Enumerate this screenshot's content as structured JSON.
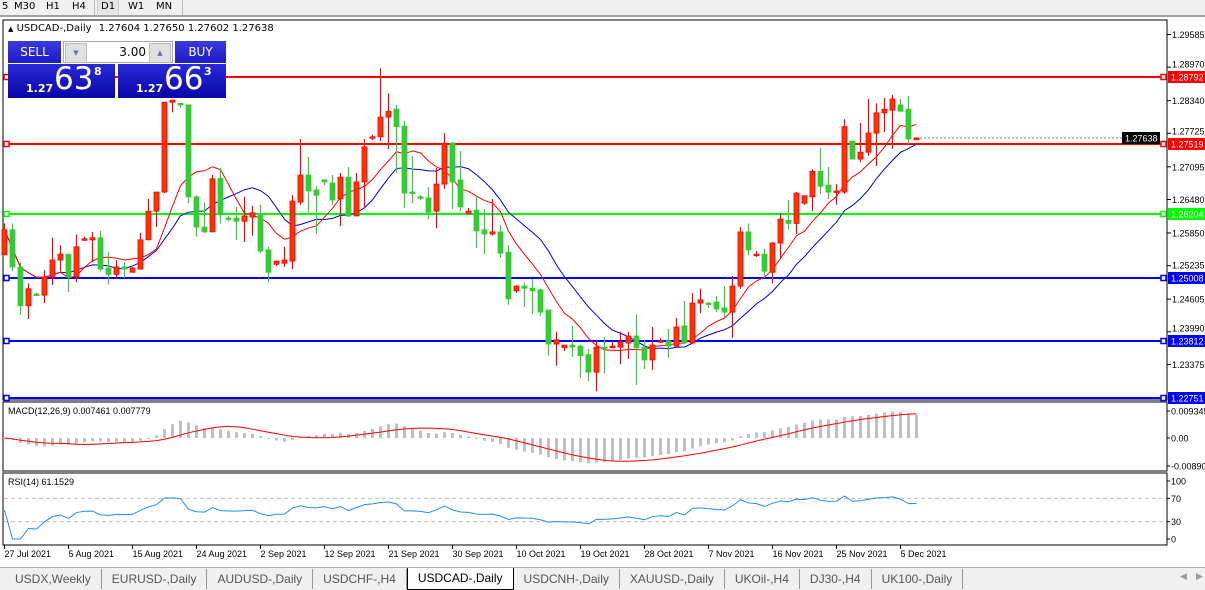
{
  "toolbar": {
    "timeframes": [
      {
        "label": "5"
      },
      {
        "label": "M30"
      },
      {
        "label": "H1"
      },
      {
        "label": "H4"
      },
      {
        "label": "D1",
        "active": true
      },
      {
        "label": "W1"
      },
      {
        "label": "MN"
      }
    ]
  },
  "chart_header": {
    "symbol": "USDCAD-,Daily",
    "ohlc": "1.27604 1.27650 1.27602 1.27638"
  },
  "trade_panel": {
    "sell_label": "SELL",
    "buy_label": "BUY",
    "lot": "3.00",
    "sell_price": {
      "prefix": "1.27",
      "big": "63",
      "sup": "8"
    },
    "buy_price": {
      "prefix": "1.27",
      "big": "66",
      "sup": "3"
    }
  },
  "tabs": [
    {
      "label": "USDX,Weekly"
    },
    {
      "label": "EURUSD-,Daily"
    },
    {
      "label": "AUDUSD-,Daily"
    },
    {
      "label": "USDCHF-,H4"
    },
    {
      "label": "USDCAD-,Daily",
      "active": true
    },
    {
      "label": "USDCNH-,Daily"
    },
    {
      "label": "XAUUSD-,Daily"
    },
    {
      "label": "UKOil-,H4"
    },
    {
      "label": "DJ30-,H4"
    },
    {
      "label": "UK100-,Daily"
    }
  ],
  "colors": {
    "bull": "#ff0000",
    "bull_body": "#ff3300",
    "bear": "#32cd32",
    "ma_fast": "#ff0000",
    "ma_slow": "#0000cc",
    "macd_hist": "#c0c0c0",
    "macd_signal": "#ff0000",
    "rsi": "#1e90ff"
  },
  "chart_data": [
    {
      "type": "candlestick",
      "ylim": [
        1.22751,
        1.29585
      ],
      "y_ticks": [
        "1.29585",
        "1.28970",
        "1.28340",
        "1.27725",
        "1.27095",
        "1.26480",
        "1.25850",
        "1.25235",
        "1.24605",
        "1.23990",
        "1.23375"
      ],
      "x_ticks": [
        "27 Jul 2021",
        "5 Aug 2021",
        "15 Aug 2021",
        "24 Aug 2021",
        "2 Sep 2021",
        "12 Sep 2021",
        "21 Sep 2021",
        "30 Sep 2021",
        "10 Oct 2021",
        "19 Oct 2021",
        "28 Oct 2021",
        "7 Nov 2021",
        "16 Nov 2021",
        "25 Nov 2021",
        "5 Dec 2021"
      ],
      "current_price": "1.27638",
      "levels": [
        {
          "price": "1.28792",
          "color": "#ff0000"
        },
        {
          "price": "1.27519",
          "color": "#ff0000"
        },
        {
          "price": "1.26204",
          "color": "#00ff00"
        },
        {
          "price": "1.25008",
          "color": "#0000ff"
        },
        {
          "price": "1.23812",
          "color": "#0000ff"
        },
        {
          "price": "1.22751",
          "color": "#0000ff"
        }
      ],
      "ohlc": [
        [
          1.2544,
          1.2603,
          1.2544,
          1.2591
        ],
        [
          1.2591,
          1.2603,
          1.2513,
          1.2521
        ],
        [
          1.2521,
          1.253,
          1.2431,
          1.2448
        ],
        [
          1.2448,
          1.249,
          1.2423,
          1.248
        ],
        [
          1.247,
          1.2472,
          1.2466,
          1.2468
        ],
        [
          1.2468,
          1.2515,
          1.2453,
          1.2502
        ],
        [
          1.2502,
          1.2576,
          1.2487,
          1.2534
        ],
        [
          1.2534,
          1.2562,
          1.2513,
          1.2545
        ],
        [
          1.2545,
          1.2545,
          1.2474,
          1.2502
        ],
        [
          1.2502,
          1.2582,
          1.2492,
          1.2559
        ],
        [
          1.2572,
          1.2578,
          1.257,
          1.2574
        ],
        [
          1.2572,
          1.2587,
          1.253,
          1.2576
        ],
        [
          1.2576,
          1.2589,
          1.2513,
          1.2517
        ],
        [
          1.2519,
          1.2549,
          1.2488,
          1.2507
        ],
        [
          1.2507,
          1.2534,
          1.25,
          1.2521
        ],
        [
          1.2521,
          1.253,
          1.25,
          1.2517
        ],
        [
          1.2511,
          1.2521,
          1.2511,
          1.2519
        ],
        [
          1.2517,
          1.2585,
          1.2517,
          1.2572
        ],
        [
          1.2572,
          1.2649,
          1.2572,
          1.2626
        ],
        [
          1.2626,
          1.2662,
          1.2596,
          1.2662
        ],
        [
          1.2662,
          1.2831,
          1.266,
          1.2831
        ],
        [
          1.2831,
          1.2835,
          1.2812,
          1.2835
        ],
        [
          1.2829,
          1.2829,
          1.282,
          1.2826
        ],
        [
          1.2826,
          1.2826,
          1.2641,
          1.2653
        ],
        [
          1.2653,
          1.2656,
          1.2578,
          1.2596
        ],
        [
          1.2596,
          1.2643,
          1.2585,
          1.2587
        ],
        [
          1.2587,
          1.2694,
          1.2587,
          1.2687
        ],
        [
          1.2688,
          1.2707,
          1.2603,
          1.2619
        ],
        [
          1.2613,
          1.2617,
          1.2607,
          1.2611
        ],
        [
          1.2613,
          1.2634,
          1.2572,
          1.2607
        ],
        [
          1.2607,
          1.2653,
          1.2568,
          1.2617
        ],
        [
          1.2615,
          1.2636,
          1.258,
          1.2623
        ],
        [
          1.2621,
          1.2638,
          1.2547,
          1.2551
        ],
        [
          1.2553,
          1.2559,
          1.2492,
          1.2511
        ],
        [
          1.2526,
          1.2532,
          1.2523,
          1.2532
        ],
        [
          1.2528,
          1.2559,
          1.2521,
          1.2534
        ],
        [
          1.2532,
          1.2656,
          1.2517,
          1.2645
        ],
        [
          1.2643,
          1.2762,
          1.2638,
          1.2694
        ],
        [
          1.2694,
          1.2728,
          1.2623,
          1.2664
        ],
        [
          1.2666,
          1.2673,
          1.2583,
          1.2656
        ],
        [
          1.2685,
          1.2685,
          1.2675,
          1.2681
        ],
        [
          1.2679,
          1.2694,
          1.2638,
          1.2647
        ],
        [
          1.2649,
          1.2698,
          1.2598,
          1.269
        ],
        [
          1.269,
          1.2709,
          1.2615,
          1.2617
        ],
        [
          1.2617,
          1.2698,
          1.2617,
          1.2681
        ],
        [
          1.2681,
          1.2762,
          1.2634,
          1.2747
        ],
        [
          1.2764,
          1.277,
          1.276,
          1.2766
        ],
        [
          1.2766,
          1.2895,
          1.2758,
          1.2803
        ],
        [
          1.2803,
          1.2848,
          1.2743,
          1.2814
        ],
        [
          1.2818,
          1.2826,
          1.2698,
          1.2785
        ],
        [
          1.2786,
          1.2796,
          1.2632,
          1.266
        ],
        [
          1.2662,
          1.273,
          1.2641,
          1.266
        ],
        [
          1.2653,
          1.2656,
          1.2647,
          1.2651
        ],
        [
          1.2651,
          1.2671,
          1.2611,
          1.2624
        ],
        [
          1.2626,
          1.2707,
          1.2594,
          1.2677
        ],
        [
          1.2677,
          1.2773,
          1.2668,
          1.2754
        ],
        [
          1.2754,
          1.2756,
          1.263,
          1.2681
        ],
        [
          1.2685,
          1.2739,
          1.2626,
          1.2634
        ],
        [
          1.2621,
          1.2632,
          1.2621,
          1.2626
        ],
        [
          1.2628,
          1.2655,
          1.2557,
          1.2589
        ],
        [
          1.2591,
          1.263,
          1.2545,
          1.2583
        ],
        [
          1.2583,
          1.2649,
          1.258,
          1.2587
        ],
        [
          1.2587,
          1.26,
          1.2538,
          1.2547
        ],
        [
          1.2549,
          1.2562,
          1.245,
          1.2461
        ],
        [
          1.2476,
          1.2487,
          1.2472,
          1.2485
        ],
        [
          1.2485,
          1.2492,
          1.2446,
          1.2481
        ],
        [
          1.2481,
          1.2498,
          1.2432,
          1.2476
        ],
        [
          1.2478,
          1.248,
          1.2429,
          1.2436
        ],
        [
          1.244,
          1.244,
          1.2354,
          1.2376
        ],
        [
          1.2376,
          1.2399,
          1.2335,
          1.2384
        ],
        [
          1.2369,
          1.2374,
          1.2363,
          1.2374
        ],
        [
          1.2374,
          1.241,
          1.2352,
          1.237
        ],
        [
          1.2372,
          1.2374,
          1.2312,
          1.2354
        ],
        [
          1.2356,
          1.2367,
          1.2306,
          1.2323
        ],
        [
          1.2323,
          1.2384,
          1.2287,
          1.237
        ],
        [
          1.237,
          1.2389,
          1.2321,
          1.2367
        ],
        [
          1.2369,
          1.238,
          1.2369,
          1.2372
        ],
        [
          1.237,
          1.2399,
          1.2338,
          1.238
        ],
        [
          1.2378,
          1.2399,
          1.2348,
          1.2391
        ],
        [
          1.2391,
          1.2432,
          1.2299,
          1.2369
        ],
        [
          1.237,
          1.2384,
          1.2329,
          1.2346
        ],
        [
          1.2346,
          1.2408,
          1.2327,
          1.2374
        ],
        [
          1.2381,
          1.2387,
          1.2378,
          1.2382
        ],
        [
          1.2382,
          1.2404,
          1.235,
          1.2372
        ],
        [
          1.2372,
          1.2425,
          1.2369,
          1.2408
        ],
        [
          1.241,
          1.2457,
          1.2378,
          1.2378
        ],
        [
          1.2378,
          1.2472,
          1.2378,
          1.2453
        ],
        [
          1.2453,
          1.248,
          1.2434,
          1.2459
        ],
        [
          1.2453,
          1.2455,
          1.2444,
          1.2451
        ],
        [
          1.2455,
          1.2466,
          1.2436,
          1.2442
        ],
        [
          1.2444,
          1.2485,
          1.2427,
          1.2436
        ],
        [
          1.2436,
          1.2504,
          1.2387,
          1.2485
        ],
        [
          1.2485,
          1.2596,
          1.248,
          1.2587
        ],
        [
          1.2587,
          1.2603,
          1.2543,
          1.2553
        ],
        [
          1.2543,
          1.2551,
          1.254,
          1.2545
        ],
        [
          1.2545,
          1.2555,
          1.25,
          1.2513
        ],
        [
          1.2511,
          1.2568,
          1.249,
          1.2566
        ],
        [
          1.2566,
          1.2623,
          1.2538,
          1.2611
        ],
        [
          1.2609,
          1.2647,
          1.2591,
          1.2603
        ],
        [
          1.2603,
          1.2662,
          1.2583,
          1.266
        ],
        [
          1.2641,
          1.2656,
          1.2638,
          1.2655
        ],
        [
          1.2653,
          1.2705,
          1.2626,
          1.2701
        ],
        [
          1.2701,
          1.2745,
          1.2658,
          1.2673
        ],
        [
          1.2675,
          1.2709,
          1.2649,
          1.2662
        ],
        [
          1.2662,
          1.2677,
          1.2638,
          1.2664
        ],
        [
          1.2662,
          1.2799,
          1.2658,
          1.2785
        ],
        [
          1.2758,
          1.2758,
          1.2724,
          1.2724
        ],
        [
          1.2724,
          1.2792,
          1.2718,
          1.2737
        ],
        [
          1.2737,
          1.2837,
          1.273,
          1.2773
        ],
        [
          1.2773,
          1.2829,
          1.2711,
          1.2811
        ],
        [
          1.2811,
          1.2839,
          1.2775,
          1.2818
        ],
        [
          1.2816,
          1.2845,
          1.2743,
          1.2837
        ],
        [
          1.2826,
          1.2837,
          1.2814,
          1.2814
        ],
        [
          1.2818,
          1.2843,
          1.2752,
          1.2762
        ],
        [
          1.27604,
          1.2765,
          1.27602,
          1.27638
        ]
      ]
    },
    {
      "type": "bar+line",
      "label": "MACD(12,26,9) 0.007461 0.007779",
      "ylim": [
        -0.0089,
        0.009345
      ],
      "y_ticks": [
        "0.009345",
        "0.00",
        "-0.00890"
      ]
    },
    {
      "type": "line",
      "label": "RSI(14) 61.1529",
      "ylim": [
        0,
        100
      ],
      "y_ticks": [
        "100",
        "70",
        "30",
        "0"
      ],
      "levels": [
        70,
        30
      ]
    }
  ]
}
